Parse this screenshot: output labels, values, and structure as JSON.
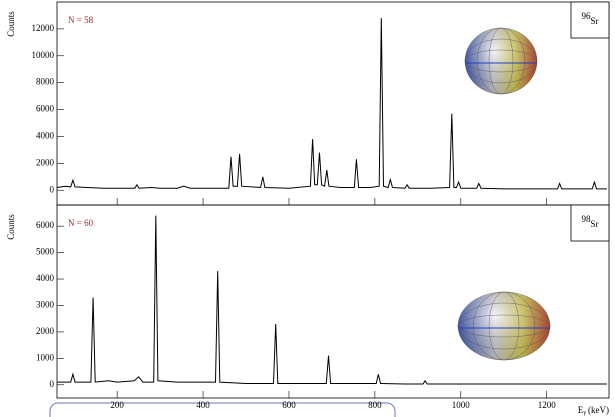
{
  "chart_data": [
    {
      "type": "line",
      "y_label": "Counts",
      "annotation": "N = 58",
      "isotope": {
        "mass": "96",
        "symbol": "Sr"
      },
      "color": "#000000",
      "annotation_color": "#b22222",
      "xlim": [
        60,
        1345
      ],
      "xticks": [
        200,
        400,
        600,
        800,
        1000,
        1200
      ],
      "ylim": [
        -1100,
        14000
      ],
      "yticks": [
        0,
        2000,
        4000,
        6000,
        8000,
        10000,
        12000
      ],
      "x": [
        60,
        80,
        92,
        97,
        102,
        130,
        170,
        210,
        241,
        246,
        251,
        280,
        300,
        340,
        355,
        370,
        420,
        460,
        465,
        470,
        480,
        485,
        490,
        534,
        539,
        544,
        600,
        650,
        655,
        660,
        666,
        671,
        676,
        683,
        688,
        693,
        720,
        752,
        757,
        762,
        790,
        810,
        815,
        820,
        831,
        836,
        841,
        870,
        875,
        880,
        930,
        974,
        979,
        984,
        990,
        995,
        1000,
        1037,
        1042,
        1047,
        1100,
        1150,
        1225,
        1230,
        1235,
        1280,
        1306,
        1311,
        1316,
        1340
      ],
      "values": [
        200,
        300,
        250,
        750,
        250,
        200,
        150,
        150,
        150,
        400,
        150,
        200,
        150,
        150,
        300,
        150,
        150,
        150,
        2500,
        300,
        300,
        2700,
        300,
        200,
        1000,
        200,
        150,
        300,
        3800,
        400,
        400,
        2800,
        400,
        300,
        1500,
        300,
        200,
        200,
        2300,
        200,
        200,
        300,
        12800,
        300,
        200,
        800,
        200,
        150,
        400,
        150,
        150,
        200,
        5700,
        200,
        200,
        600,
        150,
        150,
        500,
        150,
        100,
        100,
        100,
        500,
        100,
        100,
        100,
        600,
        100,
        100
      ]
    },
    {
      "type": "line",
      "y_label": "Counts",
      "annotation": "N = 60",
      "isotope": {
        "mass": "98",
        "symbol": "Sr"
      },
      "color": "#000000",
      "annotation_color": "#b22222",
      "xlim": [
        60,
        1345
      ],
      "xticks": [
        200,
        400,
        600,
        800,
        1000,
        1200
      ],
      "x_label": {
        "symbol": "E",
        "sub": "γ",
        "unit": "(keV)"
      },
      "ylim": [
        -500,
        6800
      ],
      "yticks": [
        0,
        1000,
        2000,
        3000,
        4000,
        5000,
        6000
      ],
      "x": [
        60,
        92,
        97,
        102,
        120,
        139,
        144,
        149,
        180,
        200,
        240,
        250,
        260,
        285,
        290,
        295,
        340,
        390,
        429,
        434,
        439,
        500,
        564,
        569,
        574,
        620,
        687,
        692,
        697,
        750,
        803,
        808,
        813,
        870,
        912,
        917,
        922,
        1000,
        1100,
        1200,
        1340
      ],
      "values": [
        100,
        100,
        400,
        100,
        100,
        100,
        3300,
        100,
        150,
        100,
        150,
        300,
        100,
        100,
        6400,
        150,
        100,
        100,
        100,
        4300,
        100,
        50,
        50,
        2300,
        50,
        50,
        50,
        1100,
        50,
        50,
        50,
        400,
        50,
        30,
        30,
        150,
        30,
        30,
        30,
        30,
        30
      ]
    }
  ]
}
